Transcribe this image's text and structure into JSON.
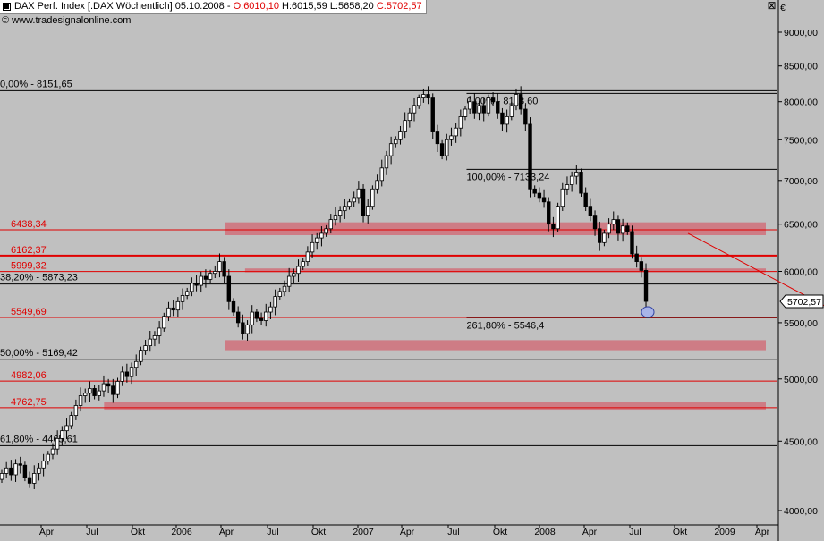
{
  "header": {
    "instrument": "DAX Perf. Index [.DAX  Wöchentlich] 05.10.2008",
    "open": "O:6010,10",
    "high": "H:6015,59",
    "low": "L:5658,20",
    "close": "C:5702,57",
    "source": "© www.tradesignalonline.com",
    "currency_symbol": "€",
    "close_symbol": "⊠"
  },
  "colors": {
    "background": "#c0c0c0",
    "red": "#e00000",
    "band": "#d0707a",
    "grid": "#000000"
  },
  "chart_data": {
    "type": "candlestick",
    "title": "DAX Perf. Index",
    "ylim": [
      3950,
      9250
    ],
    "y_scale": "log",
    "y_ticks": [
      {
        "value": 4000,
        "label": "4000,00"
      },
      {
        "value": 4500,
        "label": "4500,00"
      },
      {
        "value": 5000,
        "label": "5000,00"
      },
      {
        "value": 5500,
        "label": "5500,00"
      },
      {
        "value": 6000,
        "label": "6000,00"
      },
      {
        "value": 6500,
        "label": "6500,00"
      },
      {
        "value": 7000,
        "label": "7000,00"
      },
      {
        "value": 7500,
        "label": "7500,00"
      },
      {
        "value": 8000,
        "label": "8000,00"
      },
      {
        "value": 8500,
        "label": "8500,00"
      },
      {
        "value": 9000,
        "label": "9000,00"
      }
    ],
    "x_ticks": [
      "Apr",
      "Jul",
      "Okt",
      "2006",
      "Apr",
      "Jul",
      "Okt",
      "2007",
      "Apr",
      "Jul",
      "Okt",
      "2008",
      "Apr",
      "Jul",
      "Okt",
      "2009",
      "Apr"
    ],
    "last_price": {
      "value": 5702.57,
      "label": "5702,57"
    },
    "red_levels": [
      {
        "value": 6438.34,
        "label": "6438,34"
      },
      {
        "value": 6162.37,
        "label": "6162,37"
      },
      {
        "value": 5999.32,
        "label": "5999,32"
      },
      {
        "value": 5549.69,
        "label": "5549,69"
      },
      {
        "value": 4982.06,
        "label": "4982,06"
      },
      {
        "value": 4762.75,
        "label": "4762,75"
      }
    ],
    "fib_lines_long": [
      {
        "value": 8151.65,
        "label": "0,00% - 8151,65"
      },
      {
        "value": 5873.23,
        "label": "38,20% - 5873,23"
      },
      {
        "value": 5169.42,
        "label": "50,00% - 5169,42"
      },
      {
        "value": 4465.61,
        "label": "61,80% - 4465,61"
      }
    ],
    "fib_lines_short": [
      {
        "value": 8113.6,
        "label": "0,00% - 8113,60"
      },
      {
        "value": 7133.24,
        "label": "100,00% - 7133,24"
      },
      {
        "value": 5546.4,
        "label": "261,80% - 5546,4"
      }
    ],
    "support_bands": [
      {
        "from": "2006-01",
        "to": "2008-10",
        "low": 6380,
        "high": 6520
      },
      {
        "from": "2006-02",
        "to": "2008-11",
        "low": 5990,
        "high": 6030
      },
      {
        "from": "2006-01",
        "to": "2008-12",
        "low": 5250,
        "high": 5340
      },
      {
        "from": "2005-07",
        "to": "2009-03",
        "low": 4740,
        "high": 4810
      }
    ],
    "trendline": {
      "from_date": "2007-12",
      "from_value": 6400,
      "to_date": "2009-04",
      "to_value": 4790
    },
    "closes_weekly": [
      4260,
      4300,
      4250,
      4330,
      4320,
      4230,
      4190,
      4260,
      4300,
      4350,
      4400,
      4440,
      4520,
      4580,
      4620,
      4700,
      4780,
      4860,
      4880,
      4920,
      4860,
      4900,
      4960,
      4940,
      4870,
      4980,
      5060,
      5020,
      5100,
      5150,
      5250,
      5290,
      5350,
      5380,
      5450,
      5560,
      5640,
      5620,
      5700,
      5760,
      5800,
      5880,
      5860,
      5950,
      5920,
      5980,
      6000,
      6100,
      5950,
      5700,
      5600,
      5500,
      5400,
      5480,
      5600,
      5540,
      5520,
      5600,
      5650,
      5750,
      5800,
      5850,
      5950,
      5980,
      6050,
      6100,
      6200,
      6300,
      6350,
      6400,
      6450,
      6550,
      6600,
      6650,
      6700,
      6750,
      6800,
      6900,
      6600,
      6700,
      6900,
      7000,
      7150,
      7300,
      7450,
      7500,
      7600,
      7750,
      7850,
      7950,
      8050,
      8100,
      8050,
      7600,
      7450,
      7300,
      7500,
      7550,
      7650,
      7800,
      7900,
      8000,
      7850,
      7950,
      7850,
      8050,
      8000,
      7850,
      7700,
      7800,
      7950,
      8100,
      7900,
      7700,
      6900,
      6850,
      6800,
      6750,
      6500,
      6450,
      6700,
      6900,
      6950,
      7050,
      7100,
      6850,
      6700,
      6600,
      6450,
      6300,
      6400,
      6500,
      6550,
      6400,
      6480,
      6420,
      6180,
      6100,
      6010,
      5702.57
    ],
    "series": [
      {
        "name": "DAX Perf. Index",
        "values_ref": "closes_weekly"
      }
    ]
  }
}
